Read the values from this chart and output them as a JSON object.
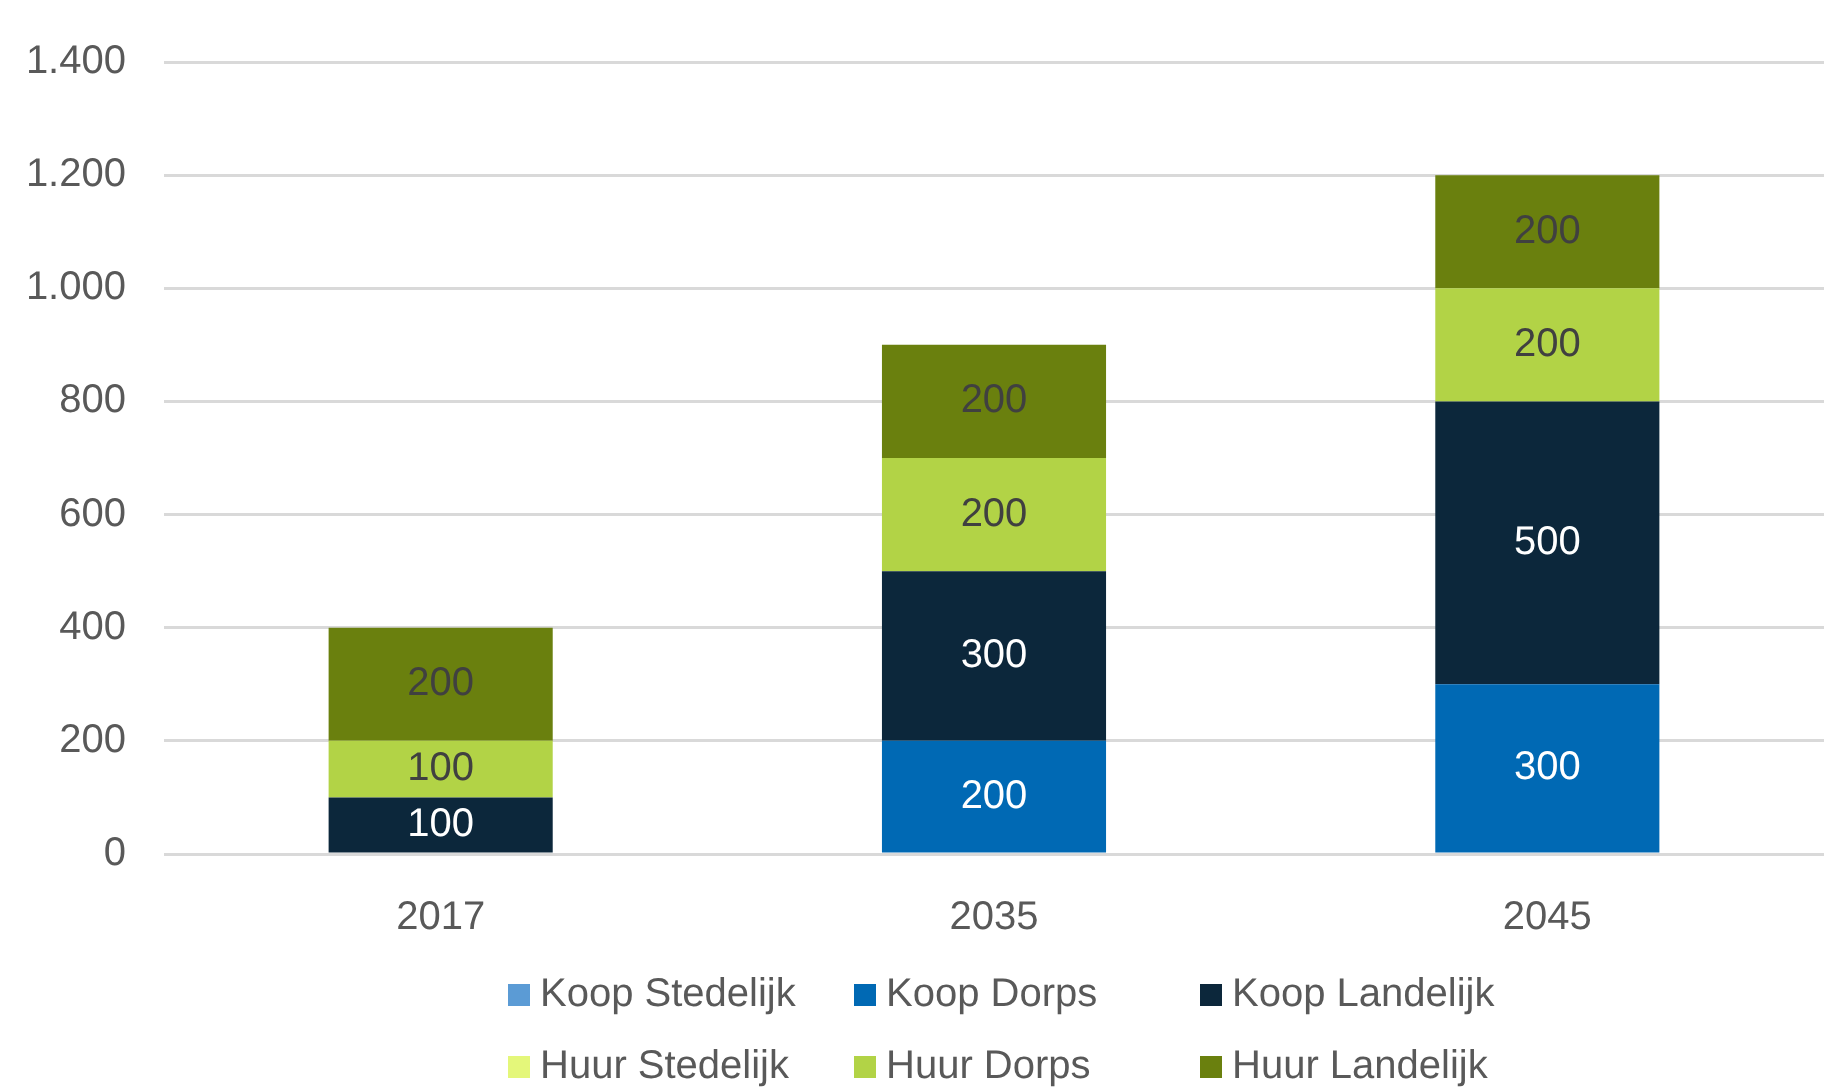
{
  "chart_data": {
    "type": "bar",
    "stacked": true,
    "categories": [
      "2017",
      "2035",
      "2045"
    ],
    "series": [
      {
        "name": "Koop Stedelijk",
        "color": "#5b9bd5",
        "values": [
          0,
          0,
          0
        ],
        "value_labels": [
          null,
          null,
          null
        ]
      },
      {
        "name": "Koop Dorps",
        "color": "#0069b4",
        "values": [
          0,
          200,
          300
        ],
        "value_labels": [
          null,
          "200",
          "300"
        ]
      },
      {
        "name": "Koop Landelijk",
        "color": "#0c273b",
        "values": [
          100,
          300,
          500
        ],
        "value_labels": [
          "100",
          "300",
          "500"
        ]
      },
      {
        "name": "Huur Stedelijk",
        "color": "#e4f77a",
        "values": [
          0,
          0,
          0
        ],
        "value_labels": [
          null,
          null,
          null
        ]
      },
      {
        "name": "Huur Dorps",
        "color": "#b2d346",
        "values": [
          100,
          200,
          200
        ],
        "value_labels": [
          "100",
          "200",
          "200"
        ]
      },
      {
        "name": "Huur Landelijk",
        "color": "#6a800e",
        "values": [
          200,
          200,
          200
        ],
        "value_labels": [
          "200",
          "200",
          "200"
        ]
      }
    ],
    "ylim": [
      0,
      1400
    ],
    "yticks": [
      0,
      200,
      400,
      600,
      800,
      {
        "value": 1000,
        "label": "1.000"
      },
      {
        "value": 1200,
        "label": "1.200"
      },
      {
        "value": 1400,
        "label": "1.400"
      }
    ],
    "grid": "y",
    "legend": "bottom"
  }
}
